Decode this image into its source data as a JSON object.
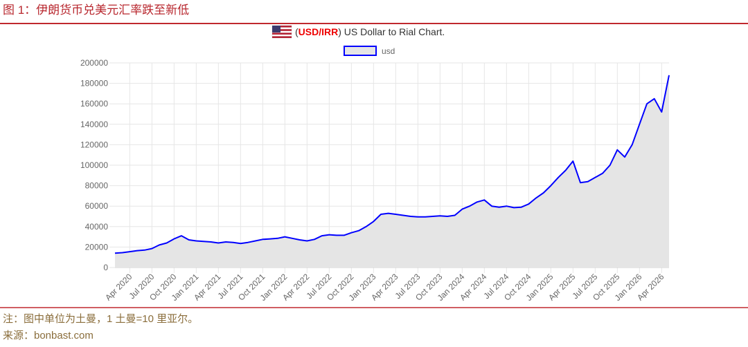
{
  "header": {
    "title": "图 1：伊朗货币兑美元汇率跌至新低"
  },
  "chart_data": {
    "type": "area",
    "title_pair": "USD/IRR",
    "title": "US Dollar to Rial Chart.",
    "categories": [
      null,
      null,
      "Apr 2020",
      null,
      null,
      "Jul 2020",
      null,
      null,
      "Oct 2020",
      null,
      null,
      "Jan 2021",
      null,
      null,
      "Apr 2021",
      null,
      null,
      "Jul 2021",
      null,
      null,
      "Oct 2021",
      null,
      null,
      "Jan 2022",
      null,
      null,
      "Apr 2022",
      null,
      null,
      "Jul 2022",
      null,
      null,
      "Oct 2022",
      null,
      null,
      "Jan 2023",
      null,
      null,
      "Apr 2023",
      null,
      null,
      "Jul 2023",
      null,
      null,
      "Oct 2023",
      null,
      null,
      "Jan 2024",
      null,
      null,
      "Apr 2024",
      null,
      null,
      "Jul 2024",
      null,
      null,
      "Oct 2024",
      null,
      null,
      "Jan 2025",
      null,
      null,
      "Apr 2025",
      null,
      null,
      "Jul 2025",
      null,
      null,
      "Oct 2025",
      null,
      null,
      "Jan 2026",
      null,
      null,
      "Apr 2026",
      null
    ],
    "series": [
      {
        "name": "usd",
        "color": "#0000ff",
        "fill": "#e5e5e5",
        "values": [
          14000,
          14500,
          15500,
          16500,
          17000,
          18500,
          22000,
          24000,
          28000,
          31000,
          27000,
          26000,
          25500,
          25000,
          24000,
          25000,
          24500,
          23500,
          24500,
          26000,
          27500,
          28000,
          28500,
          30000,
          28500,
          27000,
          26000,
          27500,
          31000,
          32000,
          31500,
          31500,
          34000,
          36000,
          40000,
          45000,
          52000,
          53000,
          52000,
          51000,
          50000,
          49500,
          49500,
          50000,
          50500,
          50000,
          51000,
          57000,
          60000,
          64000,
          66000,
          60000,
          59000,
          60000,
          58500,
          59000,
          62000,
          68000,
          73000,
          80000,
          88000,
          95000,
          104000,
          83000,
          84000,
          88000,
          92000,
          100000,
          115000,
          108000,
          120000,
          140000,
          160000,
          165000,
          152000,
          188000
        ]
      }
    ],
    "ylim": [
      0,
      200000
    ],
    "yticks": [
      0,
      20000,
      40000,
      60000,
      80000,
      100000,
      120000,
      140000,
      160000,
      180000,
      200000
    ],
    "grid": true
  },
  "footer": {
    "note": "注：图中单位为土曼，1 土曼=10 里亚尔。",
    "source": "来源：bonbast.com"
  }
}
